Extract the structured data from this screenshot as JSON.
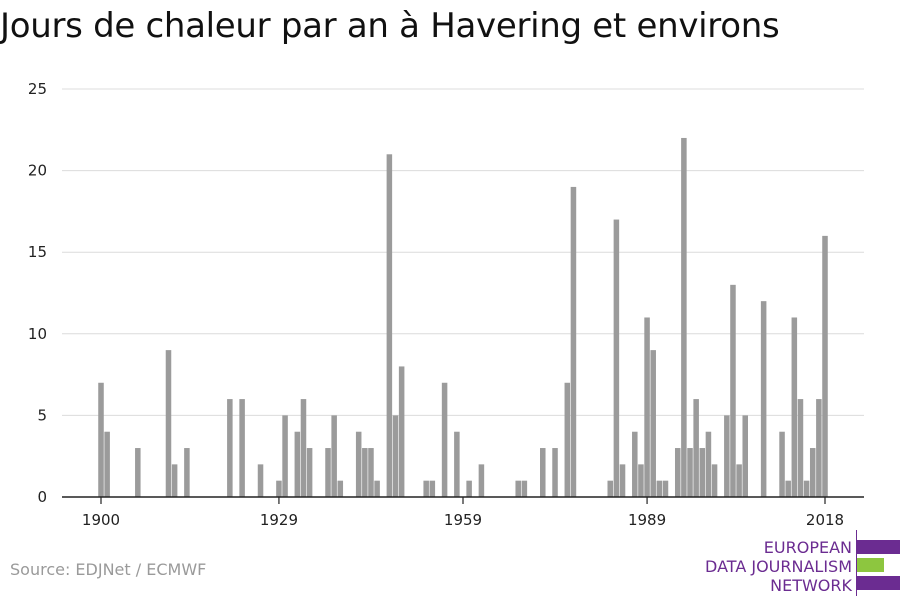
{
  "title": "Jours de chaleur par an à Havering et environs",
  "source": "Source: EDJNet / ECMWF",
  "logo": {
    "lines": [
      "EUROPEAN",
      "DATA JOURNALISM",
      "NETWORK"
    ],
    "colors": {
      "text": "#6b2c91",
      "purple": "#6b2c91",
      "green": "#8dc63f"
    }
  },
  "chart_data": {
    "type": "bar",
    "title": "Jours de chaleur par an à Havering et environs",
    "xlabel": "",
    "ylabel": "",
    "xlim": [
      1894,
      2024
    ],
    "ylim": [
      0,
      25
    ],
    "yticks": [
      0,
      5,
      10,
      15,
      20,
      25
    ],
    "xticks": [
      1900,
      1929,
      1959,
      1989,
      2018
    ],
    "grid": true,
    "bar_color": "#9b9b9b",
    "x": [
      1900,
      1901,
      1906,
      1911,
      1912,
      1914,
      1921,
      1923,
      1926,
      1929,
      1930,
      1932,
      1933,
      1934,
      1937,
      1938,
      1939,
      1942,
      1943,
      1944,
      1945,
      1947,
      1948,
      1949,
      1953,
      1954,
      1956,
      1958,
      1960,
      1962,
      1968,
      1969,
      1972,
      1974,
      1976,
      1977,
      1983,
      1984,
      1985,
      1987,
      1988,
      1989,
      1990,
      1991,
      1992,
      1994,
      1995,
      1996,
      1997,
      1998,
      1999,
      2000,
      2002,
      2003,
      2004,
      2005,
      2008,
      2011,
      2012,
      2013,
      2014,
      2015,
      2016,
      2017
    ],
    "values": [
      7,
      4,
      3,
      9,
      2,
      3,
      6,
      6,
      2,
      1,
      5,
      4,
      6,
      3,
      3,
      5,
      1,
      4,
      3,
      3,
      1,
      21,
      5,
      8,
      1,
      1,
      7,
      4,
      1,
      2,
      1,
      1,
      3,
      3,
      7,
      19,
      1,
      17,
      2,
      4,
      2,
      11,
      9,
      1,
      1,
      3,
      22,
      3,
      6,
      3,
      4,
      2,
      5,
      13,
      2,
      5,
      12,
      4,
      1,
      11,
      6,
      1,
      3,
      6
    ],
    "extra_bar": {
      "x": 2018,
      "value": 16
    }
  }
}
